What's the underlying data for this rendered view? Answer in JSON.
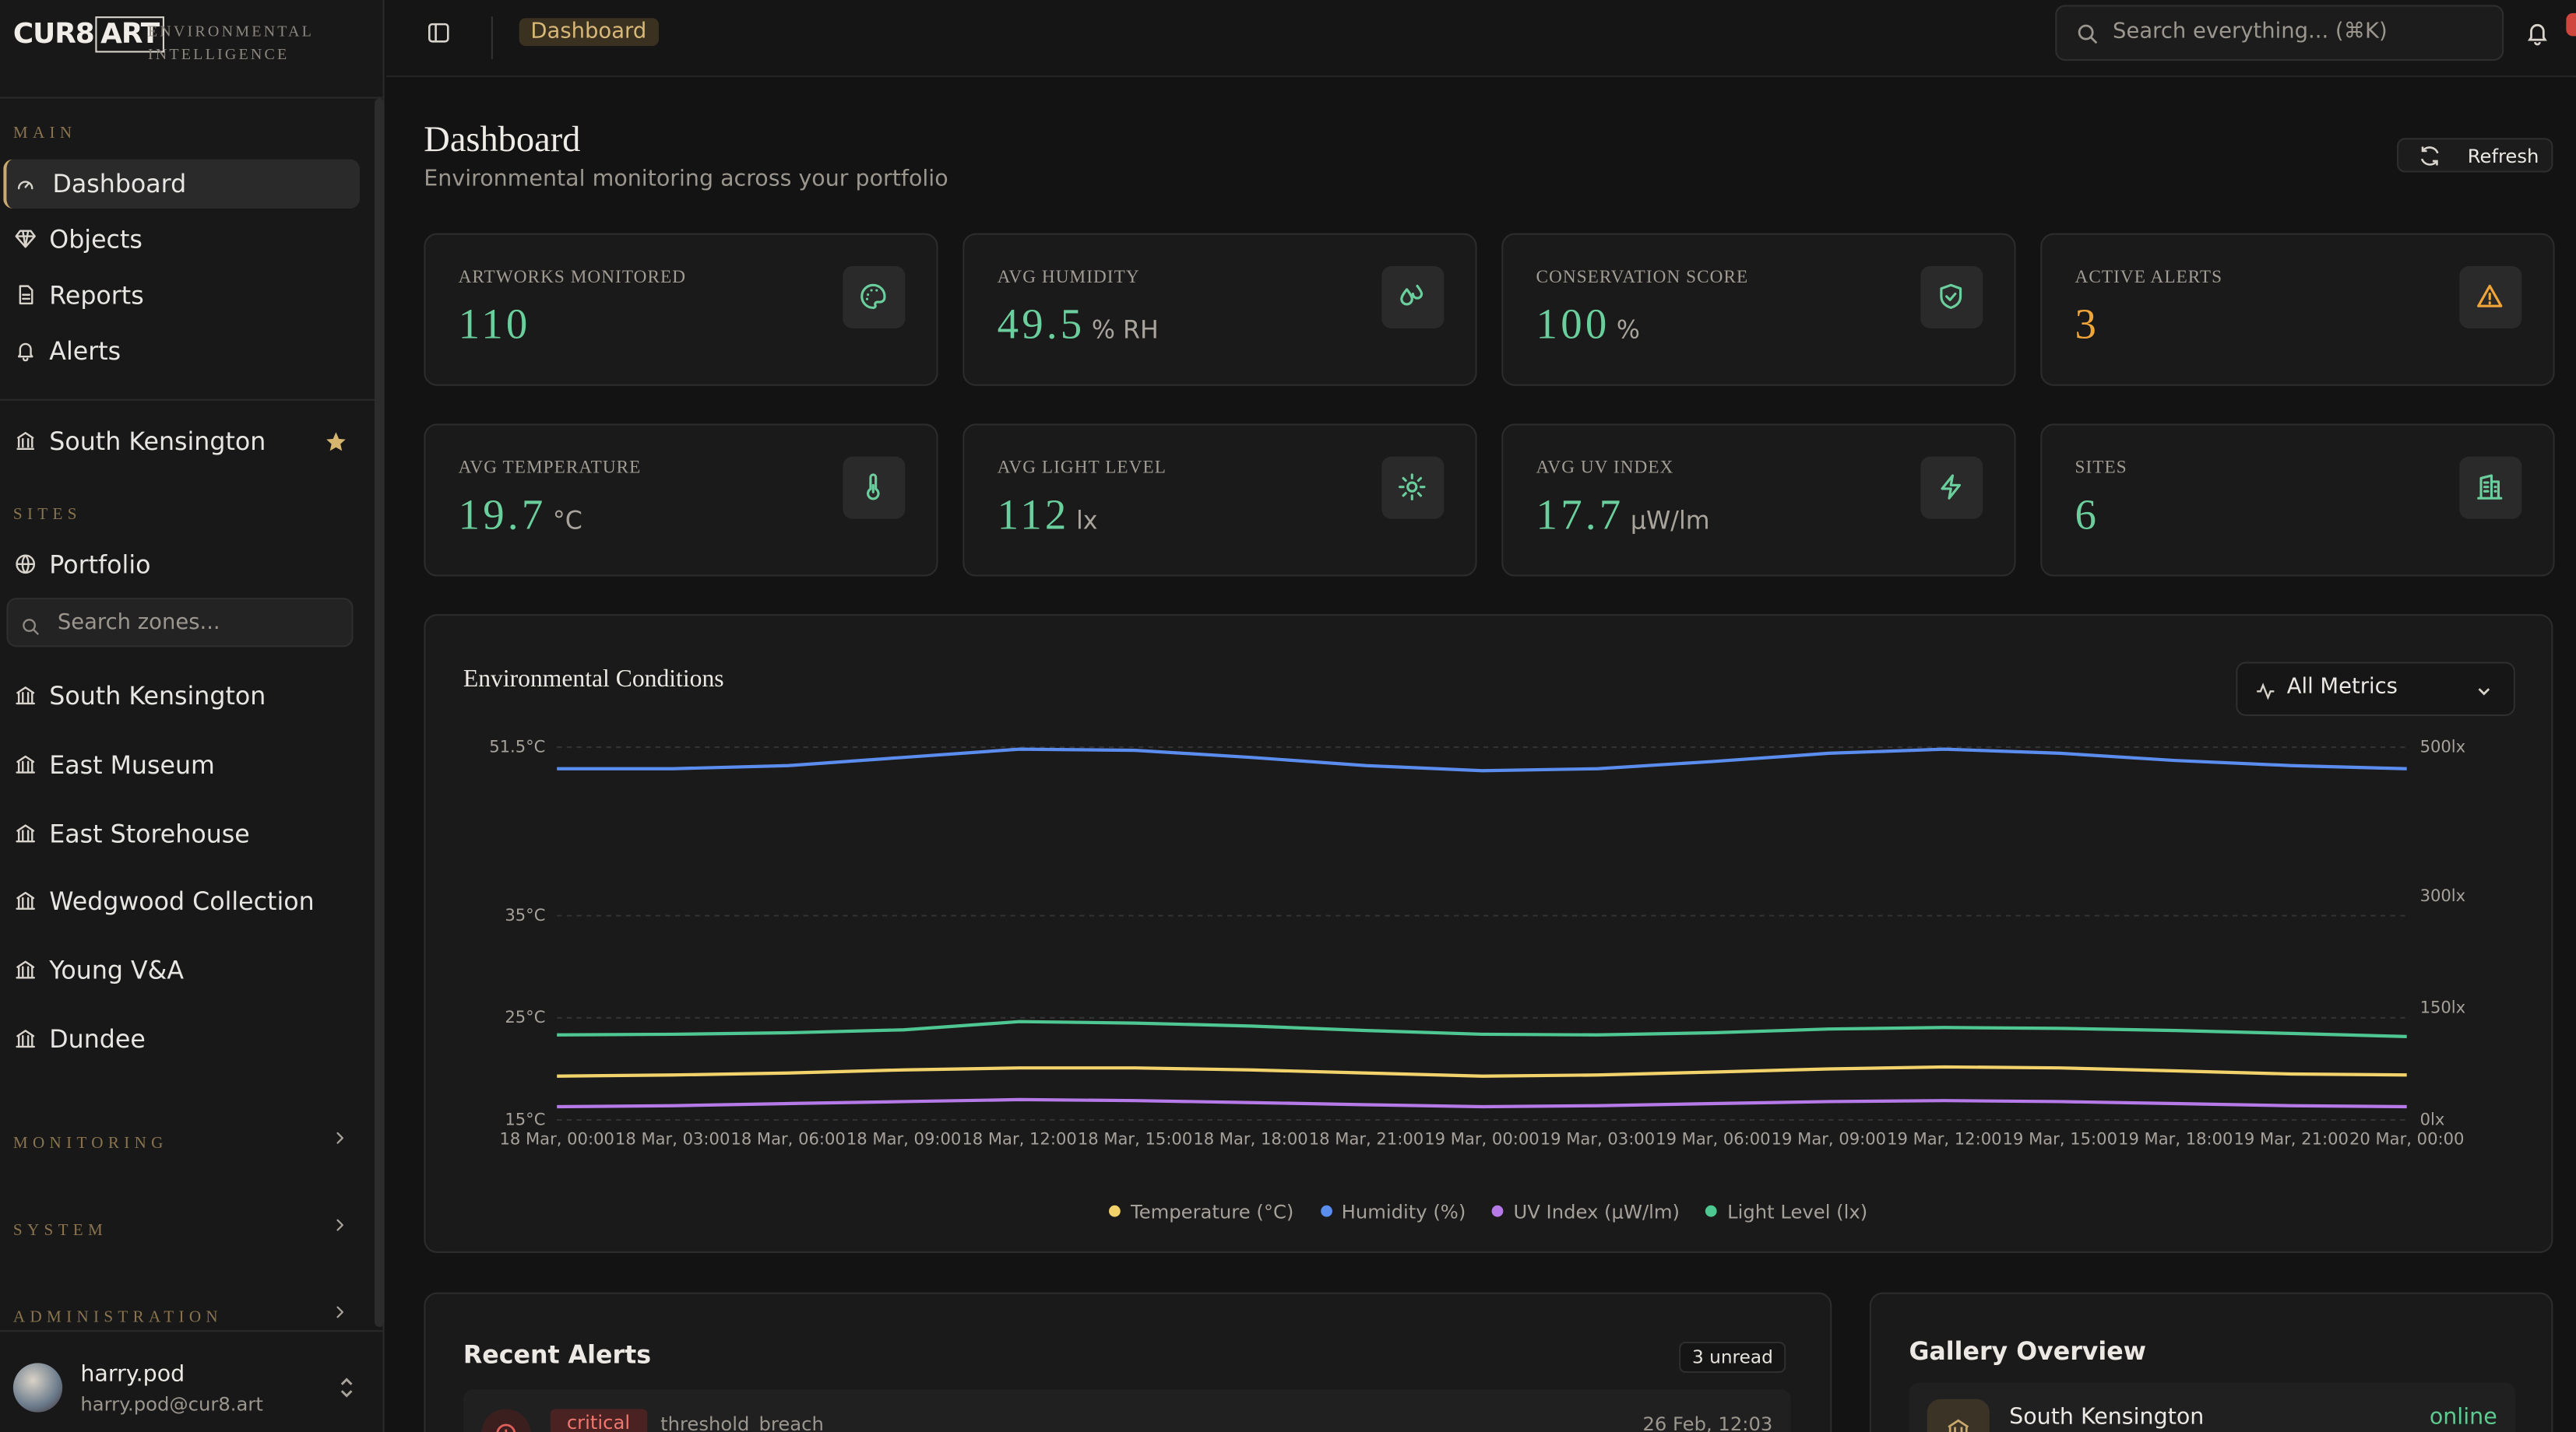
{
  "brand": {
    "logo_left": "CUR8",
    "logo_right": "ART",
    "tagline": "ENVIRONMENTAL INTELLIGENCE"
  },
  "sidebar": {
    "main_label": "MAIN",
    "main_items": [
      "Dashboard",
      "Objects",
      "Reports",
      "Alerts"
    ],
    "favorite": "South Kensington",
    "sites_label": "SITES",
    "portfolio": "Portfolio",
    "search_placeholder": "Search zones...",
    "sites": [
      "South Kensington",
      "East Museum",
      "East Storehouse",
      "Wedgwood Collection",
      "Young V&A",
      "Dundee"
    ],
    "sections": [
      "MONITORING",
      "SYSTEM",
      "ADMINISTRATION"
    ],
    "user": {
      "name": "harry.pod",
      "email": "harry.pod@cur8.art"
    }
  },
  "header": {
    "breadcrumb": "Dashboard",
    "search_placeholder": "Search everything... (⌘K)"
  },
  "page": {
    "title": "Dashboard",
    "subtitle": "Environmental monitoring across your portfolio",
    "refresh": "Refresh"
  },
  "stats": [
    {
      "label": "ARTWORKS MONITORED",
      "value": 110
    },
    {
      "label": "AVG HUMIDITY",
      "value": 49.5,
      "unit": "% RH"
    },
    {
      "label": "CONSERVATION SCORE",
      "value": 100,
      "unit": "%"
    },
    {
      "label": "ACTIVE ALERTS",
      "value": 3
    },
    {
      "label": "AVG TEMPERATURE",
      "value": 19.7,
      "unit": "°C"
    },
    {
      "label": "AVG LIGHT LEVEL",
      "value": 112,
      "unit": "lx"
    },
    {
      "label": "AVG UV INDEX",
      "value": 17.7,
      "unit": "μW/lm"
    },
    {
      "label": "SITES",
      "value": 6
    }
  ],
  "chart_controls": {
    "metric_select": "All Metrics"
  },
  "chart_data": {
    "type": "line",
    "title": "Environmental Conditions",
    "categories": [
      "18 Mar, 00:00",
      "18 Mar, 03:00",
      "18 Mar, 06:00",
      "18 Mar, 09:00",
      "18 Mar, 12:00",
      "18 Mar, 15:00",
      "18 Mar, 18:00",
      "18 Mar, 21:00",
      "19 Mar, 00:00",
      "19 Mar, 03:00",
      "19 Mar, 06:00",
      "19 Mar, 09:00",
      "19 Mar, 12:00",
      "19 Mar, 15:00",
      "19 Mar, 18:00",
      "19 Mar, 21:00",
      "20 Mar, 00:00"
    ],
    "series": [
      {
        "name": "Temperature (°C)",
        "color": "#f2d36b",
        "values": [
          19.3,
          19.4,
          19.6,
          19.9,
          20.1,
          20.1,
          19.9,
          19.6,
          19.3,
          19.4,
          19.7,
          20.0,
          20.2,
          20.1,
          19.8,
          19.5,
          19.4
        ]
      },
      {
        "name": "Humidity (%)",
        "color": "#5b8def",
        "values": [
          49.4,
          49.4,
          49.7,
          50.5,
          51.3,
          51.2,
          50.5,
          49.7,
          49.2,
          49.4,
          50.1,
          50.9,
          51.3,
          50.9,
          50.2,
          49.7,
          49.4
        ]
      },
      {
        "name": "UV Index (μW/lm)",
        "color": "#b57ae8",
        "values": [
          16.3,
          16.4,
          16.6,
          16.8,
          17.0,
          16.9,
          16.7,
          16.5,
          16.3,
          16.4,
          16.6,
          16.8,
          16.9,
          16.8,
          16.6,
          16.4,
          16.3
        ]
      },
      {
        "name": "Light Level (lx)",
        "color": "#4fc792",
        "axis": "y2",
        "values": [
          114,
          115,
          117,
          121,
          132,
          130,
          126,
          120,
          115,
          114,
          117,
          122,
          124,
          123,
          120,
          116,
          112
        ]
      }
    ],
    "ylim": [
      15,
      51.5
    ],
    "yticks": [
      {
        "value": 15,
        "label": "15°C"
      },
      {
        "value": 25,
        "label": "25°C"
      },
      {
        "value": 35,
        "label": "35°C"
      },
      {
        "value": 51.5,
        "label": "51.5°C"
      }
    ],
    "y2lim": [
      0,
      500
    ],
    "y2ticks": [
      {
        "value": 0,
        "label": "0lx"
      },
      {
        "value": 150,
        "label": "150lx"
      },
      {
        "value": 300,
        "label": "300lx"
      },
      {
        "value": 500,
        "label": "500lx"
      }
    ],
    "grid": true
  },
  "alerts": {
    "title": "Recent Alerts",
    "badge": "3 unread",
    "items": [
      {
        "severity": "critical",
        "type": "threshold_breach",
        "time": "26 Feb, 12:03"
      }
    ]
  },
  "gallery": {
    "title": "Gallery Overview",
    "items": [
      {
        "name": "South Kensington",
        "status": "online"
      }
    ]
  }
}
